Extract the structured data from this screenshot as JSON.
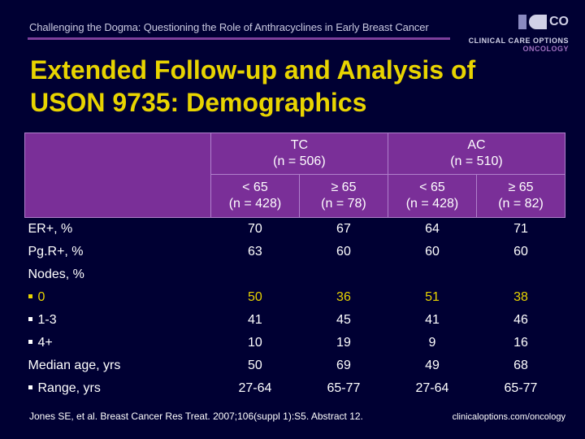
{
  "header": {
    "subtitle": "Challenging the Dogma: Questioning the Role of Anthracyclines in Early Breast Cancer",
    "logo_line1": "CLINICAL CARE OPTIONS",
    "logo_line2": "ONCOLOGY",
    "logo_mark": "CO",
    "accent_color": "#7d3f9c",
    "title_color": "#e8d400"
  },
  "title": {
    "line1": "Extended Follow-up and Analysis of",
    "line2": "USON 9735: Demographics"
  },
  "table": {
    "groups": [
      {
        "name": "TC",
        "n": "(n = 506)"
      },
      {
        "name": "AC",
        "n": "(n = 510)"
      }
    ],
    "subgroups": [
      {
        "age": "< 65",
        "n": "(n = 428)"
      },
      {
        "age": "≥ 65",
        "n": "(n = 78)"
      },
      {
        "age": "< 65",
        "n": "(n = 428)"
      },
      {
        "age": "≥ 65",
        "n": "(n = 82)"
      }
    ],
    "rows": {
      "er": {
        "label": "ER+, %",
        "values": [
          "70",
          "67",
          "64",
          "71"
        ]
      },
      "pgr": {
        "label": "Pg.R+, %",
        "values": [
          "63",
          "60",
          "60",
          "60"
        ]
      },
      "nodes_header": {
        "label": "Nodes, %"
      },
      "nodes0": {
        "label": "0",
        "values": [
          "50",
          "36",
          "51",
          "38"
        ]
      },
      "nodes13": {
        "label": "1-3",
        "values": [
          "41",
          "45",
          "41",
          "46"
        ]
      },
      "nodes4": {
        "label": "4+",
        "values": [
          "10",
          "19",
          "9",
          "16"
        ]
      },
      "median": {
        "label": "Median age, yrs",
        "values": [
          "50",
          "69",
          "49",
          "68"
        ]
      },
      "range": {
        "label": "Range, yrs",
        "values": [
          "27-64",
          "65-77",
          "27-64",
          "65-77"
        ]
      }
    }
  },
  "footer": {
    "citation": "Jones SE, et al. Breast Cancer Res Treat. 2007;106(suppl 1):S5. Abstract 12.",
    "url": "clinicaloptions.com/oncology"
  }
}
